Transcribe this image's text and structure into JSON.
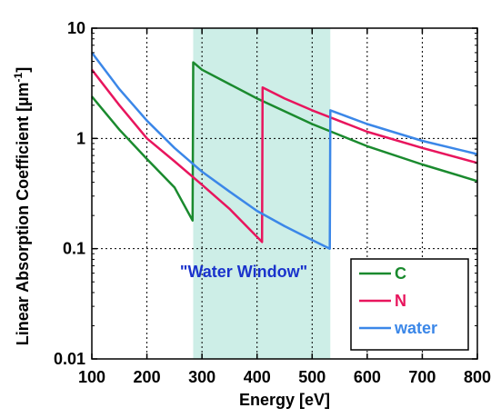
{
  "chart_data": {
    "type": "line",
    "xlabel": "Energy [eV]",
    "ylabel_main": "Linear Absorption Coefficient [",
    "ylabel_unit": "µm",
    "ylabel_exp": "-1",
    "ylabel_close": "]",
    "xlim": [
      100,
      800
    ],
    "ylim": [
      0.01,
      10
    ],
    "yscale": "log",
    "grid": true,
    "x_ticks": [
      100,
      200,
      300,
      400,
      500,
      600,
      700,
      800
    ],
    "x_tick_labels": [
      "100",
      "200",
      "300",
      "400",
      "500",
      "600",
      "700",
      "800"
    ],
    "y_ticks": [
      0.01,
      0.1,
      1,
      10
    ],
    "y_tick_labels": [
      "0.01",
      "0.1",
      "1",
      "10"
    ],
    "shaded_region": {
      "x": [
        284,
        533
      ],
      "color": "#cdeee7"
    },
    "annotation": {
      "text": "\"Water Window\"",
      "x": 260,
      "y": 0.055,
      "color": "#1a33cc"
    },
    "legend": {
      "position": "bottom-right"
    },
    "series": [
      {
        "name": "C",
        "color": "#1a8a2e",
        "x": [
          100,
          150,
          200,
          250,
          283,
          284,
          300,
          400,
          500,
          600,
          700,
          800
        ],
        "y": [
          2.4,
          1.2,
          0.65,
          0.36,
          0.18,
          4.9,
          4.2,
          2.3,
          1.35,
          0.85,
          0.58,
          0.41
        ]
      },
      {
        "name": "N",
        "color": "#e8155d",
        "x": [
          100,
          150,
          200,
          250,
          300,
          350,
          409,
          410,
          450,
          500,
          600,
          700,
          800
        ],
        "y": [
          4.2,
          2.0,
          1.0,
          0.62,
          0.38,
          0.23,
          0.115,
          2.9,
          2.3,
          1.8,
          1.15,
          0.82,
          0.6
        ]
      },
      {
        "name": "water",
        "color": "#3b87e8",
        "x": [
          100,
          150,
          200,
          250,
          300,
          350,
          400,
          450,
          500,
          532,
          533,
          600,
          700,
          800
        ],
        "y": [
          6.0,
          2.8,
          1.45,
          0.82,
          0.5,
          0.33,
          0.22,
          0.16,
          0.12,
          0.1,
          1.8,
          1.35,
          0.95,
          0.72
        ]
      }
    ]
  }
}
